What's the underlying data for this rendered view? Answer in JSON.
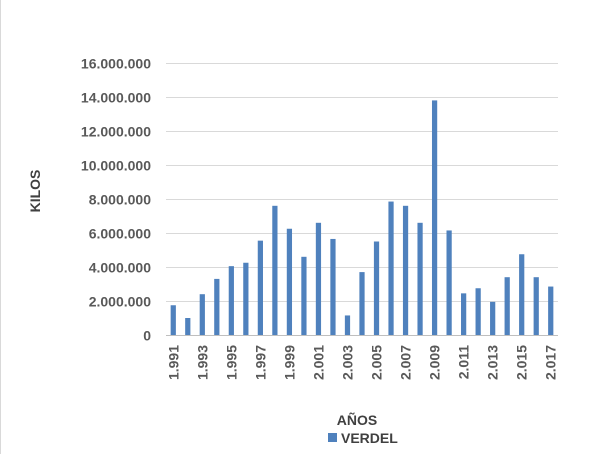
{
  "chart_data": {
    "type": "bar",
    "title": "",
    "xlabel": "AÑOS",
    "ylabel": "KILOS",
    "ylim": [
      0,
      16000000
    ],
    "yticks": [
      0,
      2000000,
      4000000,
      6000000,
      8000000,
      10000000,
      12000000,
      14000000,
      16000000
    ],
    "ytick_labels": [
      "0",
      "2.000.000",
      "4.000.000",
      "6.000.000",
      "8.000.000",
      "10.000.000",
      "12.000.000",
      "14.000.000",
      "16.000.000"
    ],
    "grid": true,
    "legend": "bottom",
    "color": "#4f81bd",
    "categories": [
      "1.991",
      "1.992",
      "1.993",
      "1.994",
      "1.995",
      "1.996",
      "1.997",
      "1.998",
      "1.999",
      "2.000",
      "2.001",
      "2.002",
      "2.003",
      "2.004",
      "2.005",
      "2.006",
      "2.007",
      "2.008",
      "2.009",
      "2.010",
      "2.011",
      "2.012",
      "2.013",
      "2.014",
      "2.015",
      "2.016",
      "2.017"
    ],
    "category_labels": [
      "1.991",
      "",
      "1.993",
      "",
      "1.995",
      "",
      "1.997",
      "",
      "1.999",
      "",
      "2.001",
      "",
      "2.003",
      "",
      "2.005",
      "",
      "2.007",
      "",
      "2.009",
      "",
      "2.011",
      "",
      "2.013",
      "",
      "2.015",
      "",
      "2.017"
    ],
    "series": [
      {
        "name": "VERDEL",
        "values": [
          1750000,
          1000000,
          2400000,
          3300000,
          4050000,
          4250000,
          5550000,
          7600000,
          6250000,
          4600000,
          6600000,
          5650000,
          1150000,
          3700000,
          5500000,
          7850000,
          7600000,
          6600000,
          13800000,
          6150000,
          2450000,
          2750000,
          1950000,
          3400000,
          4750000,
          3400000,
          2850000
        ]
      }
    ]
  }
}
